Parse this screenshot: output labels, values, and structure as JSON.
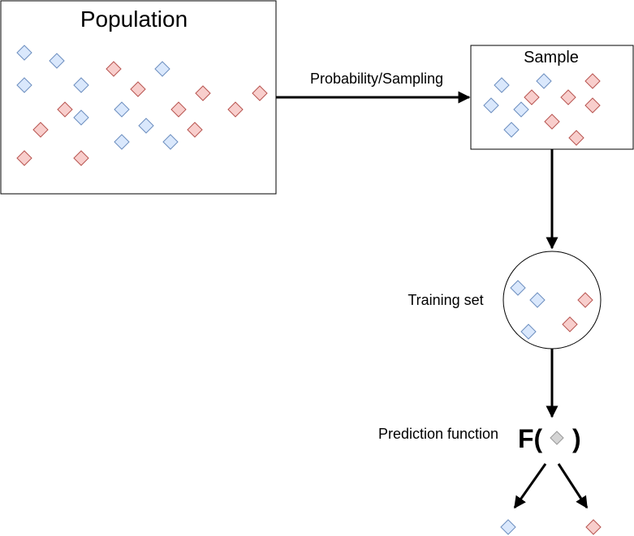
{
  "population": {
    "title": "Population"
  },
  "sample": {
    "title": "Sample"
  },
  "arrow_population_sample": {
    "label": "Probability/Sampling"
  },
  "training_set": {
    "label": "Training set"
  },
  "prediction": {
    "label": "Prediction function",
    "function_open": "F(",
    "function_close": ")"
  },
  "colors": {
    "blue_fill": "#dae8fc",
    "blue_stroke": "#6c8ebf",
    "red_fill": "#f8cecc",
    "red_stroke": "#b85450",
    "grey_fill": "#d4d4d4",
    "grey_stroke": "#9a9a9a",
    "line": "#000000"
  },
  "legend_classes": [
    "blue",
    "red",
    "grey"
  ]
}
